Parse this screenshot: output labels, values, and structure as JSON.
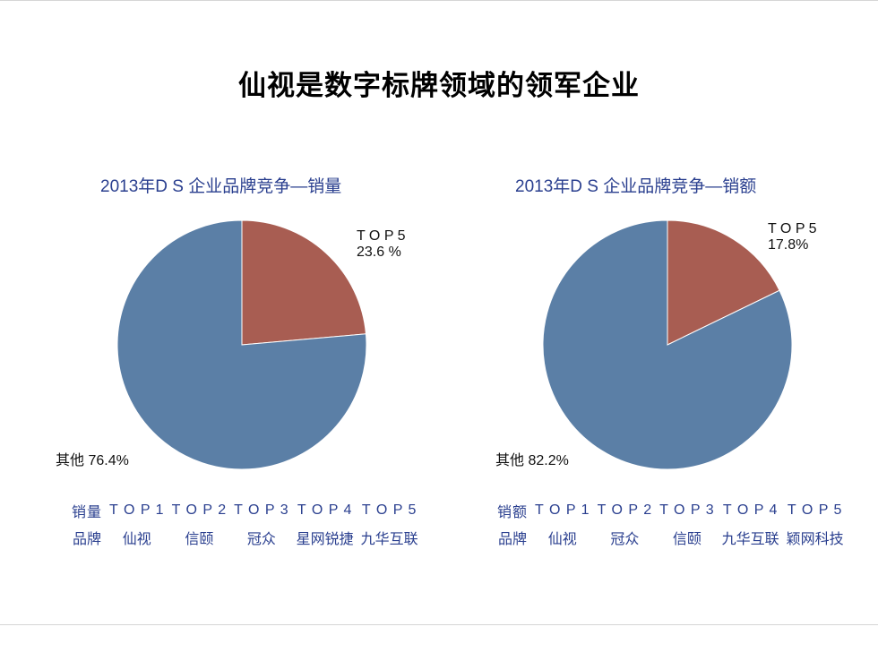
{
  "page": {
    "title": "仙视是数字标牌领域的领军企业"
  },
  "colors": {
    "others": "#5b7fa6",
    "top5": "#a85d52",
    "chart_text": "#2a3f8f"
  },
  "chart_data": [
    {
      "type": "pie",
      "title": "2013年D S 企业品牌竞争—销量",
      "slices": [
        {
          "label": "T O P 5",
          "value": 23.6,
          "value_text": "23.6 %",
          "color": "#a85d52"
        },
        {
          "label": "其他",
          "value": 76.4,
          "value_text": "76.4%",
          "color": "#5b7fa6"
        }
      ],
      "table": {
        "row1_header": "销量",
        "row2_header": "品牌",
        "ranks": [
          "T O P 1",
          "T O P 2",
          "T O P 3",
          "T O P 4",
          "T O P 5"
        ],
        "brands": [
          "仙视",
          "信颐",
          "冠众",
          "星网锐捷",
          "九华互联"
        ]
      }
    },
    {
      "type": "pie",
      "title": "2013年D S 企业品牌竞争—销额",
      "slices": [
        {
          "label": "T O P 5",
          "value": 17.8,
          "value_text": "17.8%",
          "color": "#a85d52"
        },
        {
          "label": "其他",
          "value": 82.2,
          "value_text": "82.2%",
          "color": "#5b7fa6"
        }
      ],
      "table": {
        "row1_header": "销额",
        "row2_header": "品牌",
        "ranks": [
          "T O P 1",
          "T O P 2",
          "T O P 3",
          "T O P 4",
          "T O P 5"
        ],
        "brands": [
          "仙视",
          "冠众",
          "信颐",
          "九华互联",
          "颖网科技"
        ]
      }
    }
  ]
}
